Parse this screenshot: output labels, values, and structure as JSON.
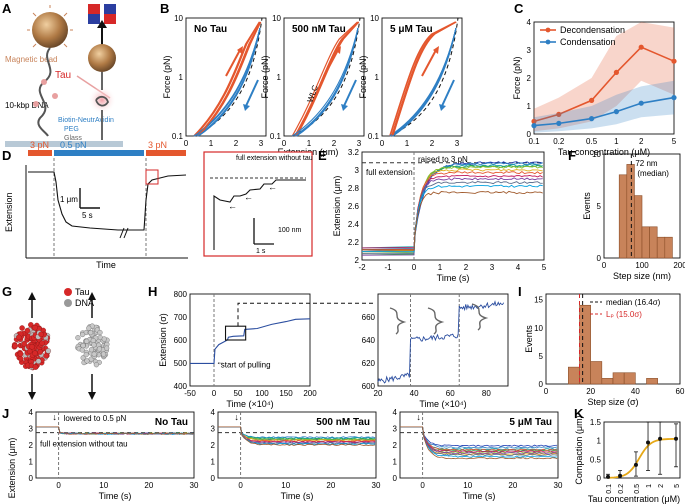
{
  "colors": {
    "orange": "#e4572e",
    "blue": "#2e7fc4",
    "brown": "#c8835a",
    "gold": "#e6a817",
    "red": "#d62828",
    "ink": "#111111"
  },
  "panels": {
    "A": {
      "label": "A",
      "magnetic_bead": "Magnetic bead",
      "dna": "10-kbp DNA",
      "tau": "Tau",
      "biotin": "Biotin-NeutrAvidin",
      "peg": "PEG",
      "glass": "Glass"
    },
    "B": {
      "label": "B",
      "titles": [
        "No Tau",
        "500 nM Tau",
        "5 μM Tau"
      ],
      "xlabel": "Extension (μm)",
      "ylabel": "Force (pN)",
      "wlc": "WLC"
    },
    "C": {
      "label": "C"
    },
    "D": {
      "label": "D",
      "force_left": "3 pN",
      "force_mid": "0.5 pN",
      "force_right": "3 pN",
      "ylabel": "Extension",
      "xlabel": "Time",
      "scale_y": "1 μm",
      "scale_x": "5 s",
      "inset_note": "full extension without tau",
      "inset_scale_y": "100 nm",
      "inset_scale_x": "1 s"
    },
    "E": {
      "label": "E",
      "note": "raised to 3 pN",
      "full": "full extension",
      "ylabel": "Extension (μm)",
      "xlabel": "Time (s)"
    },
    "F": {
      "label": "F"
    },
    "G": {
      "label": "G",
      "legend_tau": "Tau",
      "legend_dna": "DNA"
    },
    "H": {
      "label": "H",
      "ylabel": "Extension (σ)",
      "xlabel": "Time (×10⁴)",
      "note": "start of pulling"
    },
    "I": {
      "label": "I"
    },
    "J": {
      "label": "J",
      "titles": [
        "No Tau",
        "500 nM Tau",
        "5 μM Tau"
      ],
      "note": "lowered to 0.5 pN",
      "full": "full extension without tau",
      "ylabel": "Extension (μm)",
      "xlabel": "Time (s)"
    },
    "K": {
      "label": "K"
    }
  },
  "chart_data": [
    {
      "id": "C",
      "type": "line",
      "title": "",
      "xlabel": "Tau concentration (μM)",
      "ylabel": "Force (pN)",
      "xscale": "log",
      "x": [
        0.1,
        0.2,
        0.5,
        1,
        2,
        5
      ],
      "xticks": [
        "0.1",
        "0.2",
        "0.5",
        "1",
        "2",
        "5"
      ],
      "ylim": [
        0,
        4
      ],
      "yticks": [
        0,
        1,
        2,
        3,
        4
      ],
      "series": [
        {
          "name": "Decondensation",
          "values": [
            0.45,
            0.7,
            1.2,
            2.2,
            3.1,
            2.6
          ],
          "band_low": [
            0.1,
            0.2,
            0.45,
            1.0,
            1.9,
            1.4
          ],
          "band_high": [
            0.9,
            1.3,
            2.0,
            3.5,
            4.0,
            3.8
          ]
        },
        {
          "name": "Condensation",
          "values": [
            0.3,
            0.38,
            0.55,
            0.8,
            1.1,
            1.3
          ],
          "band_low": [
            0.05,
            0.1,
            0.2,
            0.35,
            0.6,
            0.7
          ],
          "band_high": [
            0.6,
            0.75,
            1.0,
            1.4,
            1.7,
            1.9
          ]
        }
      ]
    },
    {
      "id": "F",
      "type": "bar",
      "title": "",
      "xlabel": "Step size (nm)",
      "ylabel": "Events",
      "bin_edges": [
        0,
        20,
        40,
        60,
        80,
        100,
        120,
        140,
        160,
        180,
        200
      ],
      "values": [
        0,
        0,
        8,
        9,
        6,
        3,
        3,
        2,
        2,
        0
      ],
      "xticks": [
        "0",
        "100",
        "200"
      ],
      "yticks": [
        "0",
        "5",
        "10"
      ],
      "ylim": [
        0,
        10
      ],
      "median": 72,
      "median_label": "72 nm",
      "median_note": "(median)"
    },
    {
      "id": "I",
      "type": "bar",
      "title": "",
      "xlabel": "Step size (σ)",
      "ylabel": "Events",
      "bin_edges": [
        0,
        5,
        10,
        15,
        20,
        25,
        30,
        35,
        40,
        45,
        50,
        55,
        60
      ],
      "values": [
        0,
        0,
        3,
        14,
        4,
        1,
        2,
        2,
        0,
        1,
        0,
        0
      ],
      "xticks": [
        "0",
        "20",
        "40",
        "60"
      ],
      "yticks": [
        "0",
        "5",
        "10",
        "15"
      ],
      "ylim": [
        0,
        16
      ],
      "median": 16.4,
      "lp": 15.0,
      "legend": [
        "median (16.4σ)",
        "Lₚ (15.0σ)"
      ]
    },
    {
      "id": "K",
      "type": "line",
      "title": "",
      "xlabel": "Tau concentration (μM)",
      "ylabel": "Compaction (μm)",
      "xscale": "log",
      "x": [
        0.1,
        0.2,
        0.5,
        1,
        2,
        5
      ],
      "xticks": [
        "0.1",
        "0.2",
        "0.5",
        "1",
        "2",
        "5"
      ],
      "yticks": [
        "0",
        "0.5",
        "1",
        "1.5"
      ],
      "ylim": [
        0,
        1.5
      ],
      "series": [
        {
          "name": "mean",
          "values": [
            0.03,
            0.06,
            0.35,
            0.95,
            1.05,
            1.05
          ],
          "err_low": [
            0.0,
            0.0,
            0.05,
            0.2,
            0.1,
            0.3
          ],
          "err_high": [
            0.1,
            0.2,
            0.7,
            1.5,
            1.55,
            1.45
          ]
        },
        {
          "name": "fit",
          "values": [
            0.02,
            0.06,
            0.42,
            0.92,
            1.02,
            1.04
          ]
        }
      ]
    }
  ]
}
